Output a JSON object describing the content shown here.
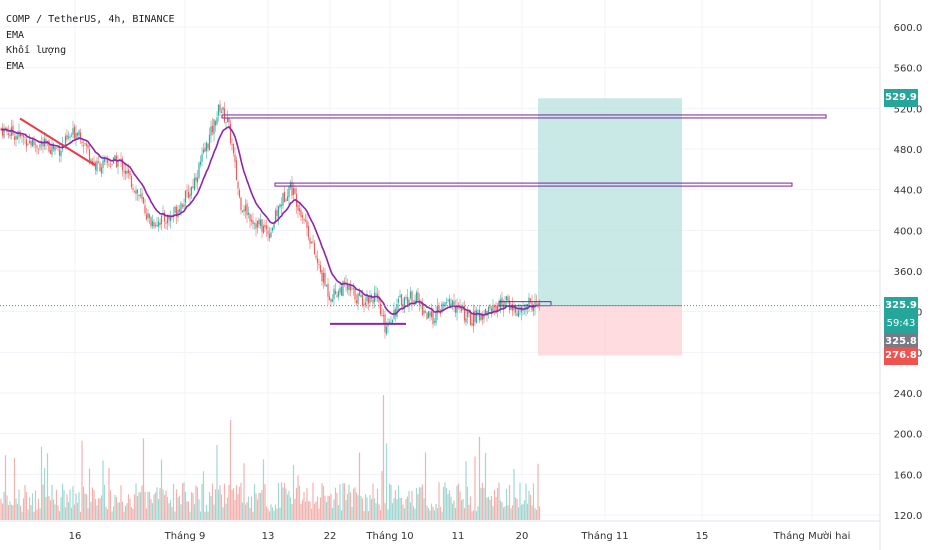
{
  "legend": {
    "symbol_line": "COMP / TetherUS, 4h, BINANCE",
    "ema1": "EMA",
    "volume": "Khối lượng",
    "ema2": "EMA"
  },
  "price_tags": {
    "target": "529.9",
    "current": "325.9",
    "countdown": "59:43",
    "last": "325.8",
    "stop": "276.8"
  },
  "colors": {
    "up": "#26a69a",
    "down": "#ef5350",
    "ema": "#8e24aa",
    "profit_zone": "#b2dfdb",
    "loss_zone": "#ffcdd2",
    "target_tag": "#26a69a",
    "stop_tag": "#ef5350"
  },
  "chart_data": {
    "type": "candlestick",
    "symbol": "COMP / TetherUS",
    "interval": "4h",
    "exchange": "BINANCE",
    "price_axis": {
      "ticks": [
        "600.0",
        "560.0",
        "520.0",
        "480.0",
        "440.0",
        "400.0",
        "360.0",
        "320.0",
        "280.0",
        "240.0",
        "200.0",
        "160.0",
        "120.0"
      ],
      "range": [
        114,
        622
      ]
    },
    "time_axis": {
      "labels": [
        "16",
        "Tháng 9",
        "13",
        "22",
        "Tháng 10",
        "11",
        "20",
        "Tháng 11",
        "15",
        "Tháng Mười hai"
      ]
    },
    "price_path": [
      [
        0,
        500
      ],
      [
        14,
        495
      ],
      [
        35,
        485
      ],
      [
        60,
        480
      ],
      [
        78,
        500
      ],
      [
        95,
        463
      ],
      [
        120,
        468
      ],
      [
        140,
        432
      ],
      [
        150,
        408
      ],
      [
        170,
        412
      ],
      [
        190,
        438
      ],
      [
        205,
        478
      ],
      [
        220,
        522
      ],
      [
        228,
        505
      ],
      [
        232,
        482
      ],
      [
        240,
        428
      ],
      [
        255,
        408
      ],
      [
        270,
        398
      ],
      [
        280,
        425
      ],
      [
        290,
        445
      ],
      [
        305,
        410
      ],
      [
        318,
        365
      ],
      [
        330,
        335
      ],
      [
        345,
        345
      ],
      [
        360,
        332
      ],
      [
        375,
        335
      ],
      [
        385,
        305
      ],
      [
        400,
        330
      ],
      [
        415,
        335
      ],
      [
        430,
        312
      ],
      [
        450,
        330
      ],
      [
        470,
        312
      ],
      [
        490,
        322
      ],
      [
        505,
        330
      ],
      [
        520,
        318
      ],
      [
        528,
        328
      ],
      [
        540,
        326
      ]
    ],
    "volume_spike_at": 384,
    "drawings": {
      "trendline": {
        "from": [
          20,
          510
        ],
        "to": [
          95,
          464
        ]
      },
      "resistance_1": {
        "price": 512,
        "from": 222,
        "to": 826
      },
      "resistance_2": {
        "price": 445,
        "from": 275,
        "to": 792
      },
      "support": {
        "price": 308,
        "from": 330,
        "to": 406
      },
      "position": {
        "entry": 325.9,
        "target": 529.9,
        "stop": 276.8
      }
    }
  }
}
